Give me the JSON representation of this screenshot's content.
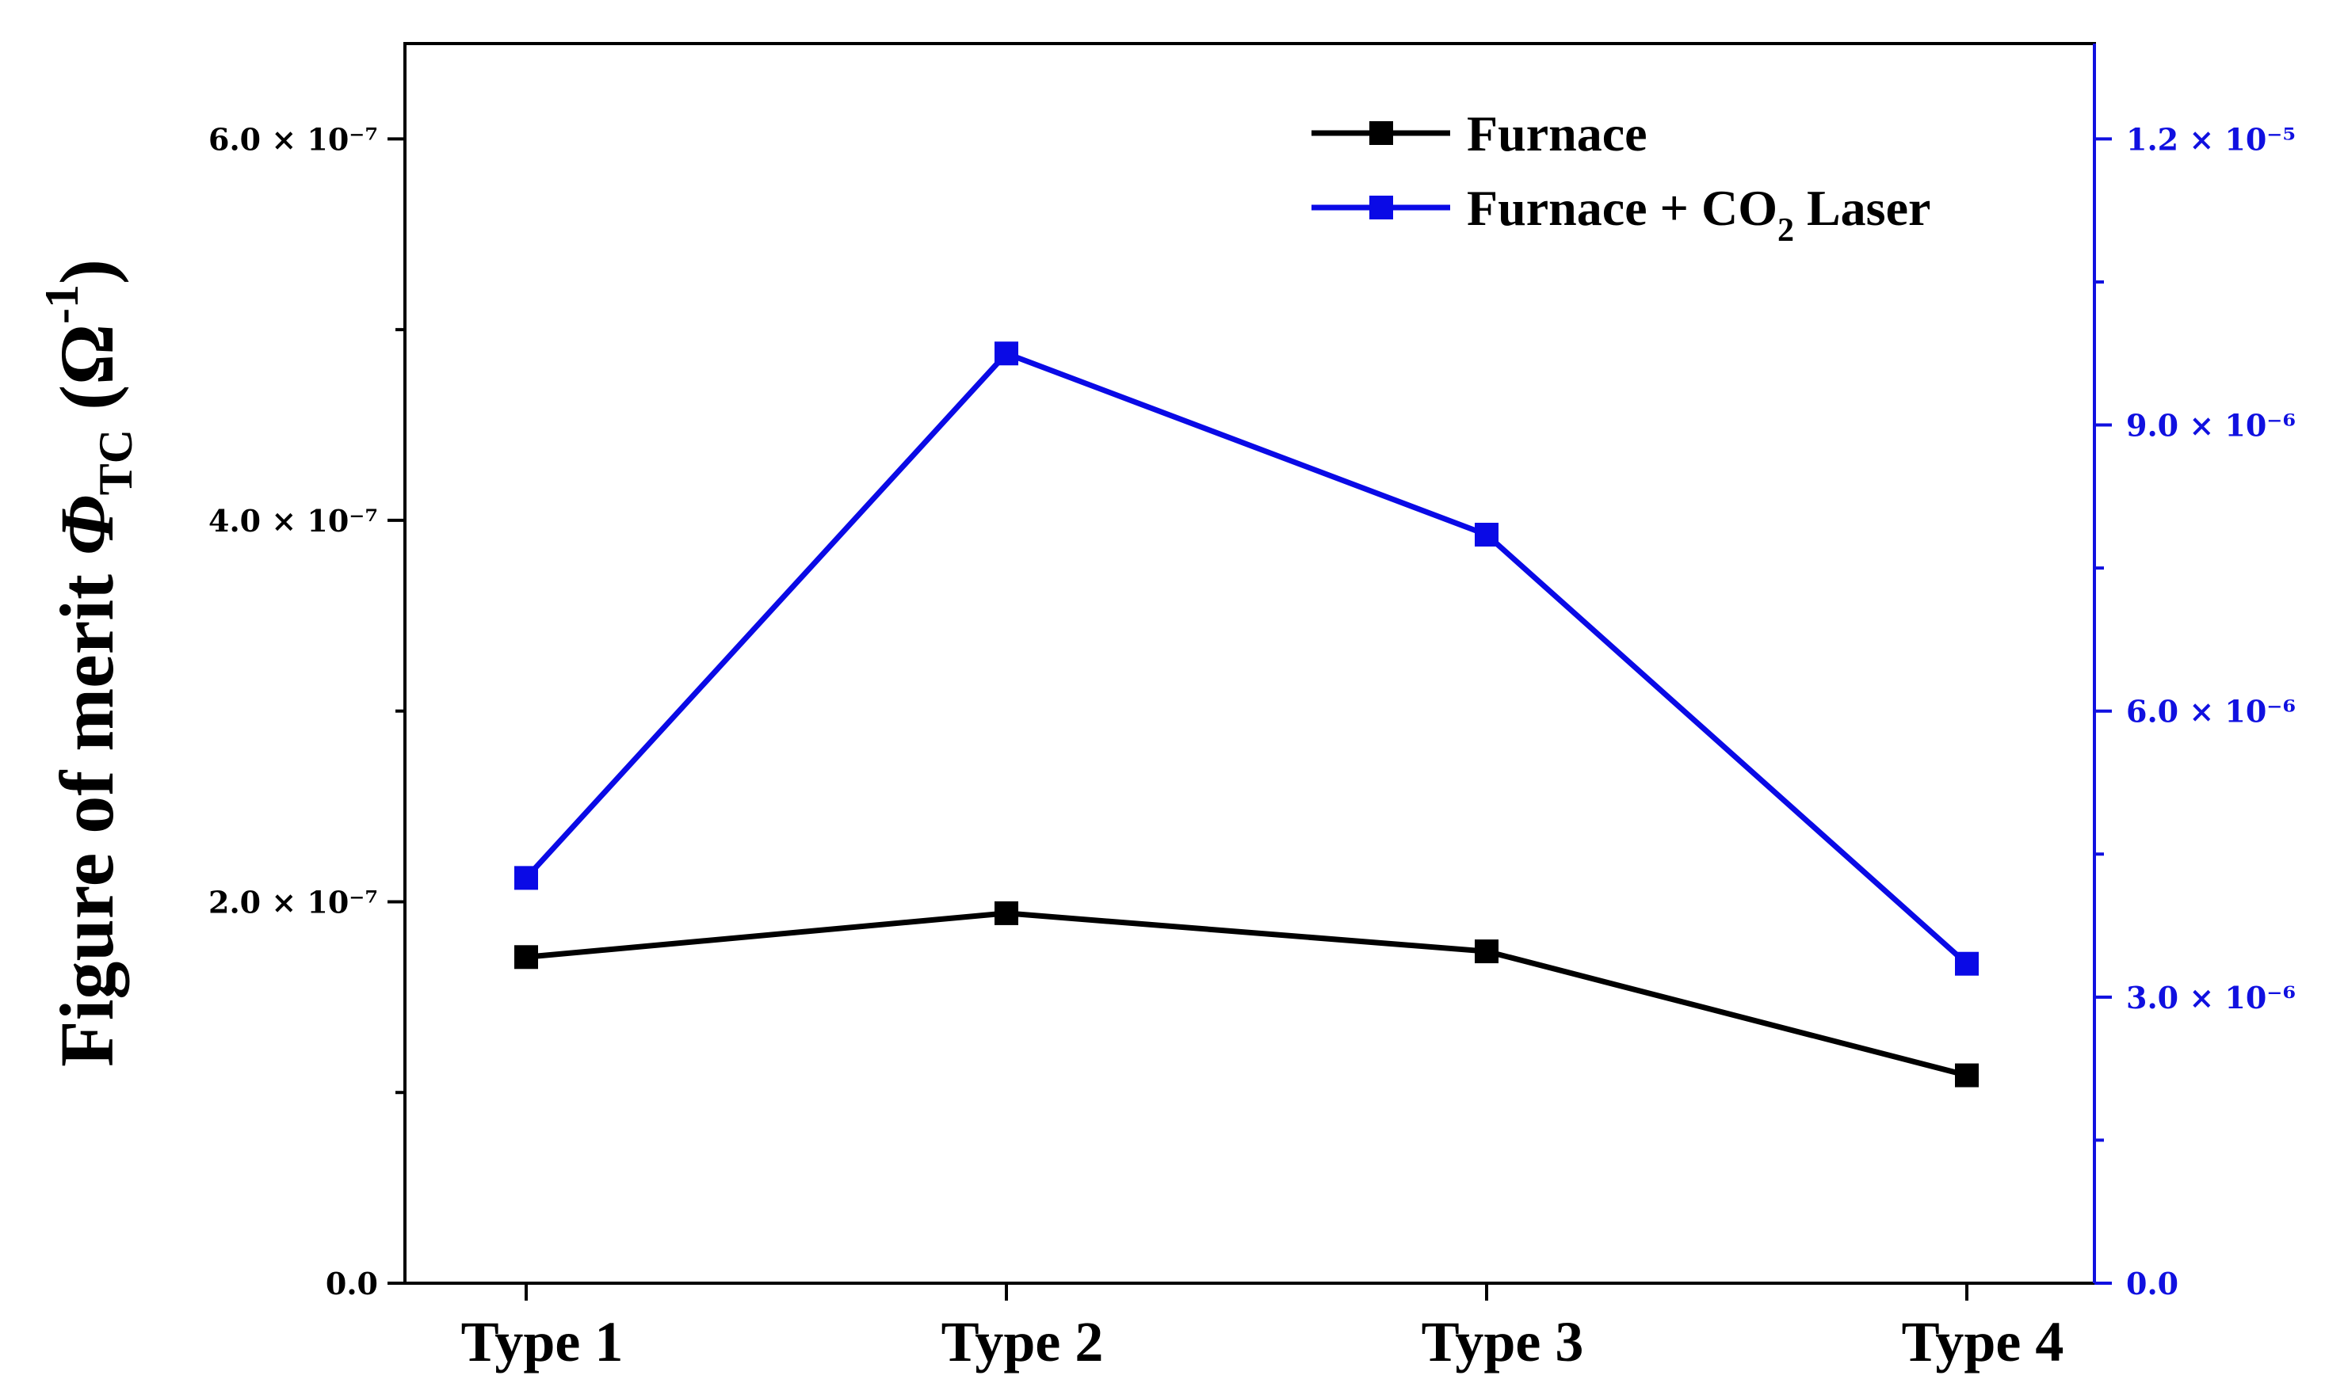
{
  "chart_data": {
    "type": "line",
    "categories": [
      "Type 1",
      "Type 2",
      "Type 3",
      "Type 4"
    ],
    "ylabel": {
      "text": "Figure of merit ",
      "symbol": "Φ",
      "subscript": "TC",
      "unit_open": " (Ω",
      "unit_sup": "-1",
      "unit_close": ")"
    },
    "y_left": {
      "lim": [
        0,
        6.5e-07
      ],
      "ticks": [
        {
          "value": 0,
          "label": "0.0"
        },
        {
          "value": 2e-07,
          "label": "2.0 × 10⁻⁷"
        },
        {
          "value": 4e-07,
          "label": "4.0 × 10⁻⁷"
        },
        {
          "value": 6e-07,
          "label": "6.0 × 10⁻⁷"
        }
      ],
      "minor": [
        1e-07,
        3e-07,
        5e-07
      ],
      "color": "#000000"
    },
    "y_right": {
      "lim": [
        0,
        1.3e-05
      ],
      "ticks": [
        {
          "value": 0,
          "label": "0.0"
        },
        {
          "value": 3e-06,
          "label": "3.0 × 10⁻⁶"
        },
        {
          "value": 6e-06,
          "label": "6.0 × 10⁻⁶"
        },
        {
          "value": 9e-06,
          "label": "9.0 × 10⁻⁶"
        },
        {
          "value": 1.2e-05,
          "label": "1.2 × 10⁻⁵"
        }
      ],
      "minor": [
        1.5e-06,
        4.5e-06,
        7.5e-06,
        1.05e-05
      ],
      "color": "#1010e0"
    },
    "series": [
      {
        "name": "Furnace",
        "axis": "left",
        "color": "#000000",
        "values": [
          1.71e-07,
          1.94e-07,
          1.74e-07,
          1.09e-07
        ]
      },
      {
        "name": "Furnace + CO₂ Laser",
        "legend_parts": [
          "Furnace + CO",
          "2",
          " Laser"
        ],
        "axis": "right",
        "color": "#0a0ae6",
        "values": [
          4.25e-06,
          9.75e-06,
          7.85e-06,
          3.35e-06
        ]
      }
    ],
    "legend_position": "top-right"
  }
}
